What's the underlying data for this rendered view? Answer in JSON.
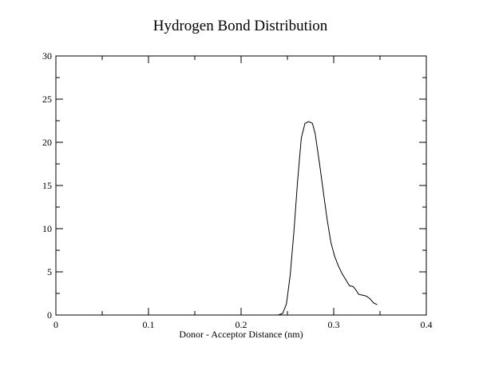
{
  "chart_data": {
    "type": "line",
    "title": "Hydrogen Bond Distribution",
    "xlabel": "Donor - Acceptor Distance (nm)",
    "ylabel": "",
    "xlim": [
      0,
      0.4
    ],
    "ylim": [
      0,
      30
    ],
    "x_ticks": [
      0,
      0.1,
      0.2,
      0.3,
      0.4
    ],
    "x_tick_labels": [
      "0",
      "0.1",
      "0.2",
      "0.3",
      "0.4"
    ],
    "y_ticks": [
      0,
      5,
      10,
      15,
      20,
      25,
      30
    ],
    "y_tick_labels": [
      "0",
      "5",
      "10",
      "15",
      "20",
      "25",
      "30"
    ],
    "x_minor_step": 0.05,
    "y_minor_step": 2.5,
    "grid": false,
    "series": [
      {
        "x": [
          0.24,
          0.245,
          0.249,
          0.253,
          0.257,
          0.261,
          0.265,
          0.269,
          0.273,
          0.277,
          0.28,
          0.285,
          0.289,
          0.293,
          0.297,
          0.301,
          0.305,
          0.309,
          0.313,
          0.317,
          0.321,
          0.324,
          0.327,
          0.331,
          0.335,
          0.339,
          0.343,
          0.347
        ],
        "y": [
          0.0,
          0.2,
          1.3,
          4.6,
          9.6,
          15.5,
          20.5,
          22.2,
          22.4,
          22.2,
          21.0,
          17.3,
          14.1,
          11.0,
          8.4,
          6.8,
          5.7,
          4.8,
          4.1,
          3.4,
          3.3,
          2.9,
          2.4,
          2.3,
          2.2,
          1.9,
          1.4,
          1.2
        ]
      }
    ]
  }
}
